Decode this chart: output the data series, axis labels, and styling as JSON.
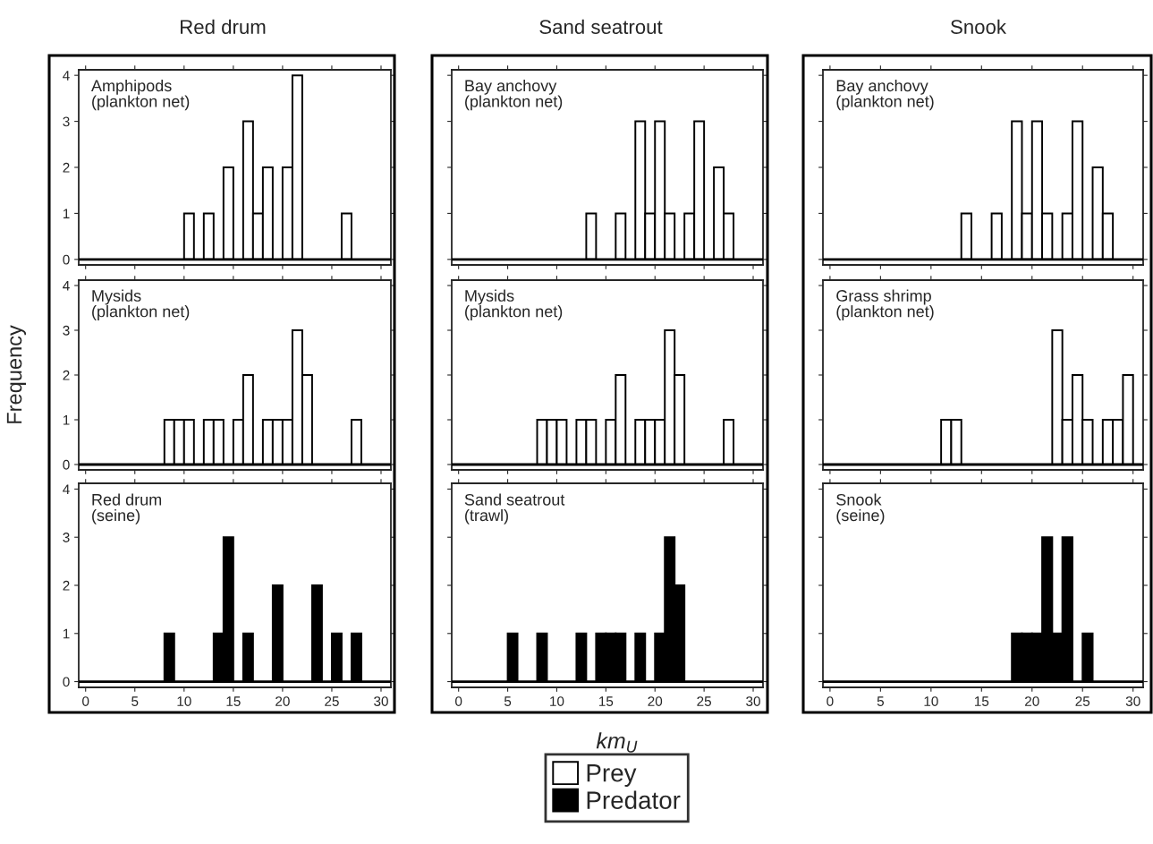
{
  "chart_data": [
    {
      "type": "histogram",
      "title": "Red drum",
      "annotations": [
        "Amphipods\n(plankton net)"
      ],
      "bins": [
        0,
        1,
        2,
        3,
        4,
        5,
        6,
        7,
        8,
        9,
        10,
        11,
        12,
        13,
        14,
        15,
        16,
        17,
        18,
        19,
        20,
        21,
        22,
        23,
        24,
        25,
        26,
        27,
        28,
        29,
        30
      ],
      "series": [
        {
          "name": "Prey",
          "color": "#ffffff",
          "values": [
            0,
            0,
            0,
            0,
            0,
            0,
            0,
            0,
            0,
            0,
            1,
            0,
            1,
            0,
            2,
            0,
            3,
            1,
            2,
            0,
            2,
            4,
            0,
            0,
            0,
            0,
            1,
            0,
            0,
            0
          ]
        }
      ],
      "ref_lines": [
        {
          "axis": "y",
          "value": 0,
          "color": "#000000"
        }
      ],
      "xlim": [
        -0.7,
        31
      ],
      "ylim": [
        -0.12,
        4.12
      ],
      "xticks": [
        0,
        5,
        10,
        15,
        20,
        25,
        30
      ],
      "yticks": [
        0,
        1,
        2,
        3,
        4
      ],
      "tick_labels": "y"
    },
    {
      "type": "histogram",
      "title": "Sand seatrout",
      "annotations": [
        "Bay anchovy\n(plankton net)"
      ],
      "bins": [
        0,
        1,
        2,
        3,
        4,
        5,
        6,
        7,
        8,
        9,
        10,
        11,
        12,
        13,
        14,
        15,
        16,
        17,
        18,
        19,
        20,
        21,
        22,
        23,
        24,
        25,
        26,
        27,
        28,
        29,
        30
      ],
      "series": [
        {
          "color": "#ffffff",
          "values": [
            0,
            0,
            0,
            0,
            0,
            0,
            0,
            0,
            0,
            0,
            0,
            0,
            0,
            1,
            0,
            0,
            1,
            0,
            3,
            1,
            3,
            1,
            0,
            1,
            3,
            0,
            2,
            1,
            0,
            0
          ]
        }
      ],
      "ref_lines": [
        {
          "axis": "y",
          "value": 0,
          "color": "#000000"
        }
      ],
      "xlim": [
        -0.7,
        31
      ],
      "ylim": [
        -0.12,
        4.12
      ],
      "xticks": [
        0,
        5,
        10,
        15,
        20,
        25,
        30
      ],
      "yticks": [
        0,
        1,
        2,
        3,
        4
      ],
      "tick_labels": false
    },
    {
      "type": "histogram",
      "title": "Snook",
      "annotations": [
        "Bay anchovy\n(plankton net)"
      ],
      "bins": [
        0,
        1,
        2,
        3,
        4,
        5,
        6,
        7,
        8,
        9,
        10,
        11,
        12,
        13,
        14,
        15,
        16,
        17,
        18,
        19,
        20,
        21,
        22,
        23,
        24,
        25,
        26,
        27,
        28,
        29,
        30
      ],
      "series": [
        {
          "color": "#ffffff",
          "values": [
            0,
            0,
            0,
            0,
            0,
            0,
            0,
            0,
            0,
            0,
            0,
            0,
            0,
            1,
            0,
            0,
            1,
            0,
            3,
            1,
            3,
            1,
            0,
            1,
            3,
            0,
            2,
            1,
            0,
            0
          ]
        }
      ],
      "ref_lines": [
        {
          "axis": "y",
          "value": 0,
          "color": "#000000"
        }
      ],
      "xlim": [
        -0.7,
        31
      ],
      "ylim": [
        -0.12,
        4.12
      ],
      "xticks": [
        0,
        5,
        10,
        15,
        20,
        25,
        30
      ],
      "yticks": [
        0,
        1,
        2,
        3,
        4
      ],
      "tick_labels": false
    },
    {
      "type": "histogram",
      "ylabel": "Frequency",
      "annotations": [
        "Mysids\n(plankton net)"
      ],
      "bins": [
        0,
        1,
        2,
        3,
        4,
        5,
        6,
        7,
        8,
        9,
        10,
        11,
        12,
        13,
        14,
        15,
        16,
        17,
        18,
        19,
        20,
        21,
        22,
        23,
        24,
        25,
        26,
        27,
        28,
        29,
        30
      ],
      "series": [
        {
          "color": "#ffffff",
          "values": [
            0,
            0,
            0,
            0,
            0,
            0,
            0,
            0,
            1,
            1,
            1,
            0,
            1,
            1,
            0,
            1,
            2,
            0,
            1,
            1,
            1,
            3,
            2,
            0,
            0,
            0,
            0,
            1,
            0,
            0
          ]
        }
      ],
      "ref_lines": [
        {
          "axis": "y",
          "value": 0,
          "color": "#000000"
        }
      ],
      "xlim": [
        -0.7,
        31
      ],
      "ylim": [
        -0.12,
        4.12
      ],
      "xticks": [
        0,
        5,
        10,
        15,
        20,
        25,
        30
      ],
      "yticks": [
        0,
        1,
        2,
        3,
        4
      ],
      "tick_labels": "y"
    },
    {
      "type": "histogram",
      "annotations": [
        "Mysids\n(plankton net)"
      ],
      "bins": [
        0,
        1,
        2,
        3,
        4,
        5,
        6,
        7,
        8,
        9,
        10,
        11,
        12,
        13,
        14,
        15,
        16,
        17,
        18,
        19,
        20,
        21,
        22,
        23,
        24,
        25,
        26,
        27,
        28,
        29,
        30
      ],
      "series": [
        {
          "color": "#ffffff",
          "values": [
            0,
            0,
            0,
            0,
            0,
            0,
            0,
            0,
            1,
            1,
            1,
            0,
            1,
            1,
            0,
            1,
            2,
            0,
            1,
            1,
            1,
            3,
            2,
            0,
            0,
            0,
            0,
            1,
            0,
            0
          ]
        }
      ],
      "ref_lines": [
        {
          "axis": "y",
          "value": 0,
          "color": "#000000"
        }
      ],
      "xlim": [
        -0.7,
        31
      ],
      "ylim": [
        -0.12,
        4.12
      ],
      "xticks": [
        0,
        5,
        10,
        15,
        20,
        25,
        30
      ],
      "yticks": [
        0,
        1,
        2,
        3,
        4
      ],
      "tick_labels": false
    },
    {
      "type": "histogram",
      "annotations": [
        "Grass shrimp\n(plankton net)"
      ],
      "bins": [
        0,
        1,
        2,
        3,
        4,
        5,
        6,
        7,
        8,
        9,
        10,
        11,
        12,
        13,
        14,
        15,
        16,
        17,
        18,
        19,
        20,
        21,
        22,
        23,
        24,
        25,
        26,
        27,
        28,
        29,
        30
      ],
      "series": [
        {
          "color": "#ffffff",
          "values": [
            0,
            0,
            0,
            0,
            0,
            0,
            0,
            0,
            0,
            0,
            0,
            1,
            1,
            0,
            0,
            0,
            0,
            0,
            0,
            0,
            0,
            0,
            3,
            1,
            2,
            1,
            0,
            1,
            1,
            2
          ]
        }
      ],
      "ref_lines": [
        {
          "axis": "y",
          "value": 0,
          "color": "#000000"
        }
      ],
      "xlim": [
        -0.7,
        31
      ],
      "ylim": [
        -0.12,
        4.12
      ],
      "xticks": [
        0,
        5,
        10,
        15,
        20,
        25,
        30
      ],
      "yticks": [
        0,
        1,
        2,
        3,
        4
      ],
      "tick_labels": false
    },
    {
      "type": "histogram",
      "legend": "bottom",
      "annotations": [
        "Red drum\n(seine)"
      ],
      "bins": [
        0,
        1,
        2,
        3,
        4,
        5,
        6,
        7,
        8,
        9,
        10,
        11,
        12,
        13,
        14,
        15,
        16,
        17,
        18,
        19,
        20,
        21,
        22,
        23,
        24,
        25,
        26,
        27,
        28,
        29,
        30
      ],
      "series": [
        {
          "name": "Predator",
          "color": "#000000",
          "values": [
            0,
            0,
            0,
            0,
            0,
            0,
            0,
            0,
            1,
            0,
            0,
            0,
            0,
            1,
            3,
            0,
            1,
            0,
            0,
            2,
            0,
            0,
            0,
            2,
            0,
            1,
            0,
            1,
            0,
            0
          ]
        }
      ],
      "ref_lines": [
        {
          "axis": "y",
          "value": 0,
          "color": "#000000"
        }
      ],
      "xlim": [
        -0.7,
        31
      ],
      "ylim": [
        -0.12,
        4.12
      ],
      "xticks": [
        0,
        5,
        10,
        15,
        20,
        25,
        30
      ],
      "yticks": [
        0,
        1,
        2,
        3,
        4
      ]
    },
    {
      "type": "histogram",
      "xlabel": "km$_{U}$",
      "annotations": [
        "Sand seatrout\n(trawl)"
      ],
      "bins": [
        0,
        1,
        2,
        3,
        4,
        5,
        6,
        7,
        8,
        9,
        10,
        11,
        12,
        13,
        14,
        15,
        16,
        17,
        18,
        19,
        20,
        21,
        22,
        23,
        24,
        25,
        26,
        27,
        28,
        29,
        30
      ],
      "series": [
        {
          "color": "#000000",
          "values": [
            0,
            0,
            0,
            0,
            0,
            1,
            0,
            0,
            1,
            0,
            0,
            0,
            1,
            0,
            1,
            1,
            1,
            0,
            1,
            0,
            1,
            3,
            2,
            0,
            0,
            0,
            0,
            0,
            0,
            0
          ]
        }
      ],
      "ref_lines": [
        {
          "axis": "y",
          "value": 0,
          "color": "#000000"
        }
      ],
      "xlim": [
        -0.7,
        31
      ],
      "ylim": [
        -0.12,
        4.12
      ],
      "xticks": [
        0,
        5,
        10,
        15,
        20,
        25,
        30
      ],
      "yticks": [
        0,
        1,
        2,
        3,
        4
      ],
      "tick_labels": "x"
    },
    {
      "type": "histogram",
      "annotations": [
        "Snook\n(seine)"
      ],
      "bins": [
        0,
        1,
        2,
        3,
        4,
        5,
        6,
        7,
        8,
        9,
        10,
        11,
        12,
        13,
        14,
        15,
        16,
        17,
        18,
        19,
        20,
        21,
        22,
        23,
        24,
        25,
        26,
        27,
        28,
        29,
        30
      ],
      "series": [
        {
          "color": "#000000",
          "values": [
            0,
            0,
            0,
            0,
            0,
            0,
            0,
            0,
            0,
            0,
            0,
            0,
            0,
            0,
            0,
            0,
            0,
            0,
            1,
            1,
            1,
            3,
            1,
            3,
            0,
            1,
            0,
            0,
            0,
            0
          ]
        }
      ],
      "ref_lines": [
        {
          "axis": "y",
          "value": 0,
          "color": "#000000"
        }
      ],
      "xlim": [
        -0.7,
        31
      ],
      "ylim": [
        -0.12,
        4.12
      ],
      "xticks": [
        0,
        5,
        10,
        15,
        20,
        25,
        30
      ],
      "yticks": [
        0,
        1,
        2,
        3,
        4
      ],
      "tick_labels": "x"
    }
  ]
}
